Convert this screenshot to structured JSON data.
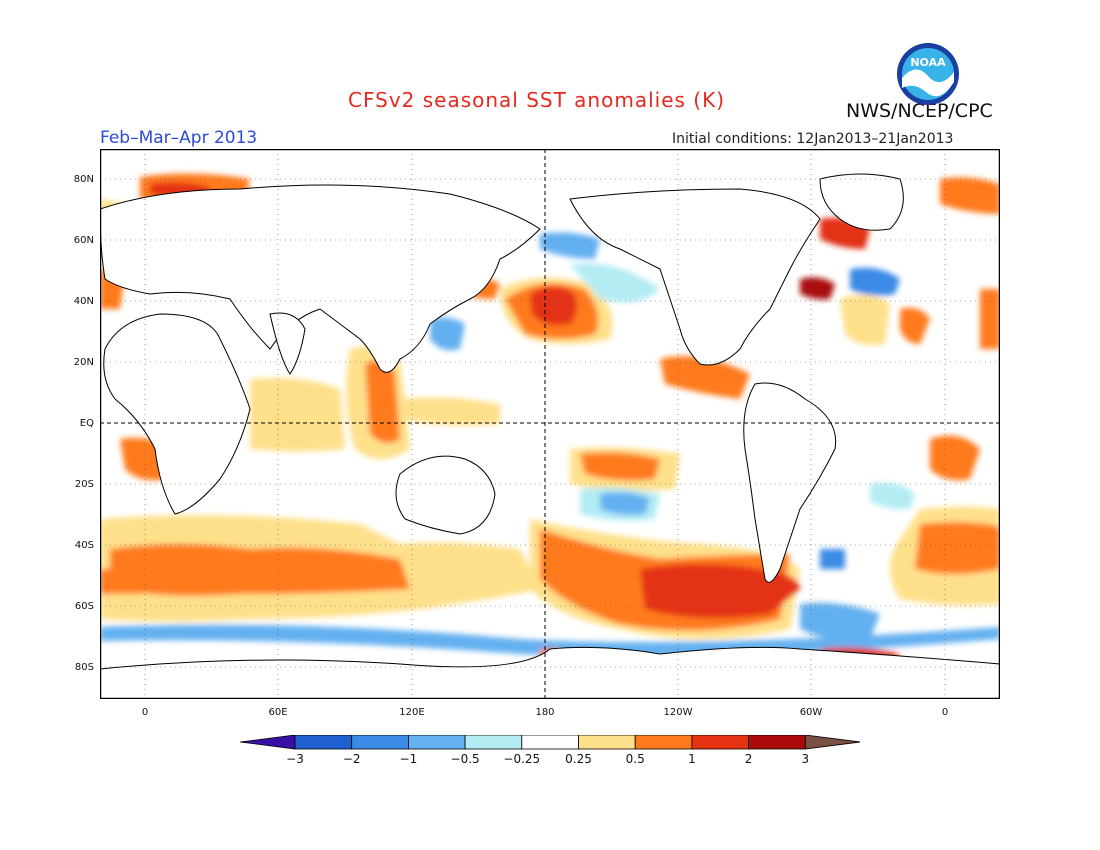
{
  "title": "CFSv2 seasonal SST anomalies (K)",
  "agency": "NWS/NCEP/CPC",
  "logo_text": "NOAA",
  "period": "Feb–Mar–Apr 2013",
  "initial_conditions": "Initial conditions: 12Jan2013–21Jan2013",
  "lat_labels": [
    "80N",
    "60N",
    "40N",
    "20N",
    "EQ",
    "20S",
    "40S",
    "60S",
    "80S"
  ],
  "lon_labels": [
    "0",
    "60E",
    "120E",
    "180",
    "120W",
    "60W",
    "0"
  ],
  "colorbar": {
    "labels": [
      "−3",
      "−2",
      "−1",
      "−0.5",
      "−0.25",
      "0.25",
      "0.5",
      "1",
      "2",
      "3"
    ],
    "colors": [
      "#3a0fa8",
      "#1f5fd0",
      "#3a8ae6",
      "#64b0f0",
      "#b4ecf4",
      "#ffffff",
      "#ffe08a",
      "#ff7a1e",
      "#e43212",
      "#aa0a0a",
      "#7a5044"
    ]
  },
  "colors": {
    "title": "#e8281e",
    "period": "#2a4bd7",
    "land": "#ffffff",
    "coast": "#000000"
  }
}
